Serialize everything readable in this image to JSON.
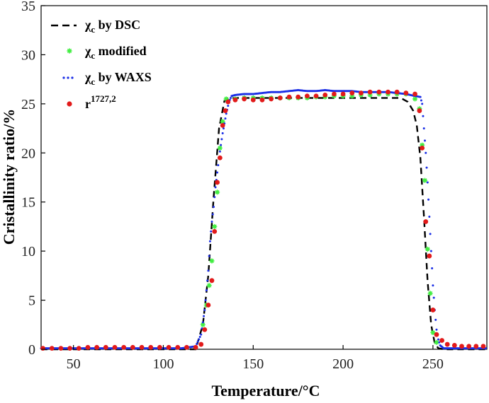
{
  "chart_data": {
    "type": "scatter",
    "xlabel": "Temperature/°C",
    "ylabel": "Cristallinity ratio/%",
    "xlim": [
      32,
      280
    ],
    "ylim": [
      0,
      35
    ],
    "xticks": [
      50,
      100,
      150,
      200,
      250
    ],
    "yticks": [
      0,
      5,
      10,
      15,
      20,
      25,
      30,
      35
    ],
    "grid": false,
    "legend_position": "top-left",
    "series": [
      {
        "name": "χc by DSC",
        "name_main": "χ",
        "name_sub": "c",
        "name_rest": " by DSC",
        "style": "dashed-line",
        "color": "#000000",
        "x": [
          32,
          60,
          100,
          118,
          122,
          125,
          128,
          131,
          134,
          137,
          140,
          160,
          200,
          220,
          232,
          236,
          239,
          241,
          243,
          245,
          247,
          249,
          251,
          253,
          256,
          260,
          280
        ],
        "y": [
          0,
          0,
          0,
          0,
          2.5,
          7.5,
          15.5,
          22.5,
          25.3,
          25.6,
          25.6,
          25.6,
          25.6,
          25.6,
          25.6,
          25.2,
          24.3,
          22.8,
          19.5,
          13.5,
          7,
          2.5,
          0.6,
          0.1,
          0,
          0,
          0
        ]
      },
      {
        "name": "χc modified",
        "name_main": "χ",
        "name_sub": "c",
        "name_rest": " modified",
        "style": "star-markers",
        "color": "#44ee44",
        "x": [
          122,
          124,
          125.5,
          127,
          128.5,
          130,
          131.5,
          133,
          135,
          140,
          145,
          150,
          155,
          160,
          165,
          170,
          175,
          180,
          185,
          190,
          195,
          200,
          205,
          210,
          215,
          220,
          225,
          230,
          235,
          240,
          242.5,
          244,
          245.5,
          247,
          248.5,
          250,
          252
        ],
        "y": [
          2.5,
          4.5,
          6.5,
          9,
          12.5,
          16,
          20.5,
          23.2,
          25.5,
          25.5,
          25.6,
          25.6,
          25.6,
          25.6,
          25.6,
          25.6,
          25.6,
          25.6,
          25.7,
          25.7,
          25.8,
          25.8,
          25.8,
          25.9,
          25.9,
          26,
          26,
          26,
          26,
          25.5,
          24.5,
          20.8,
          17.2,
          10.2,
          5.7,
          1.7,
          0.7
        ]
      },
      {
        "name": "χc by WAXS",
        "name_main": "χ",
        "name_sub": "c",
        "name_rest": " by WAXS",
        "style": "small-dots",
        "color": "#1a2ee6",
        "x": [
          32,
          40,
          50,
          60,
          70,
          80,
          90,
          100,
          110,
          118,
          121,
          123,
          125,
          126,
          127,
          128,
          129,
          130,
          131,
          132,
          133,
          134,
          135,
          136,
          137,
          138,
          140,
          145,
          150,
          155,
          160,
          165,
          170,
          175,
          180,
          185,
          190,
          195,
          200,
          205,
          210,
          215,
          220,
          225,
          230,
          235,
          240,
          243,
          244,
          245,
          246,
          247,
          248,
          249,
          250,
          251,
          252,
          253,
          254,
          256,
          260,
          270,
          280
        ],
        "y": [
          0.1,
          0.1,
          0.1,
          0.1,
          0.1,
          0.1,
          0.1,
          0.1,
          0.1,
          0.3,
          1.5,
          4,
          8,
          11,
          13,
          14.5,
          16.5,
          18,
          19.5,
          20.8,
          22,
          23,
          24,
          24.8,
          25.4,
          25.8,
          25.9,
          26,
          26,
          26.1,
          26.2,
          26.2,
          26.3,
          26.4,
          26.3,
          26.3,
          26.4,
          26.3,
          26.3,
          26.3,
          26.2,
          26.2,
          26.2,
          26.2,
          26.1,
          26,
          25.8,
          25.7,
          25,
          22.5,
          20,
          17,
          13.5,
          10,
          6.5,
          4,
          2,
          1,
          0.4,
          0.1,
          0.1,
          0.1,
          0.1
        ]
      },
      {
        "name": "r1727,2",
        "name_main": "r",
        "name_sup": "1727,2",
        "style": "red-dots",
        "color": "#e21a1a",
        "x": [
          33,
          38,
          43,
          48,
          53,
          58,
          63,
          68,
          73,
          78,
          83,
          88,
          93,
          98,
          103,
          108,
          113,
          118,
          121,
          123,
          125,
          127,
          128.5,
          130,
          131.5,
          133,
          134.5,
          136,
          140,
          145,
          150,
          155,
          160,
          165,
          170,
          175,
          180,
          185,
          190,
          195,
          200,
          205,
          210,
          215,
          220,
          225,
          230,
          235,
          240,
          242.5,
          244,
          246,
          248,
          250,
          252,
          255,
          258,
          262,
          266,
          270,
          274,
          278
        ],
        "y": [
          0.1,
          0.1,
          0.1,
          0.1,
          0.1,
          0.2,
          0.2,
          0.2,
          0.2,
          0.2,
          0.2,
          0.2,
          0.2,
          0.2,
          0.2,
          0.2,
          0.2,
          0.2,
          0.5,
          2,
          4.5,
          7,
          12,
          17,
          19.5,
          22.8,
          24.3,
          25.2,
          25.4,
          25.5,
          25.4,
          25.4,
          25.5,
          25.6,
          25.7,
          25.7,
          25.8,
          25.8,
          25.9,
          26,
          26,
          26.1,
          26.1,
          26.2,
          26.2,
          26.2,
          26.2,
          26.1,
          26,
          24.3,
          20.5,
          13,
          9.5,
          4,
          1.5,
          0.9,
          0.5,
          0.4,
          0.3,
          0.3,
          0.3,
          0.3
        ]
      }
    ]
  }
}
